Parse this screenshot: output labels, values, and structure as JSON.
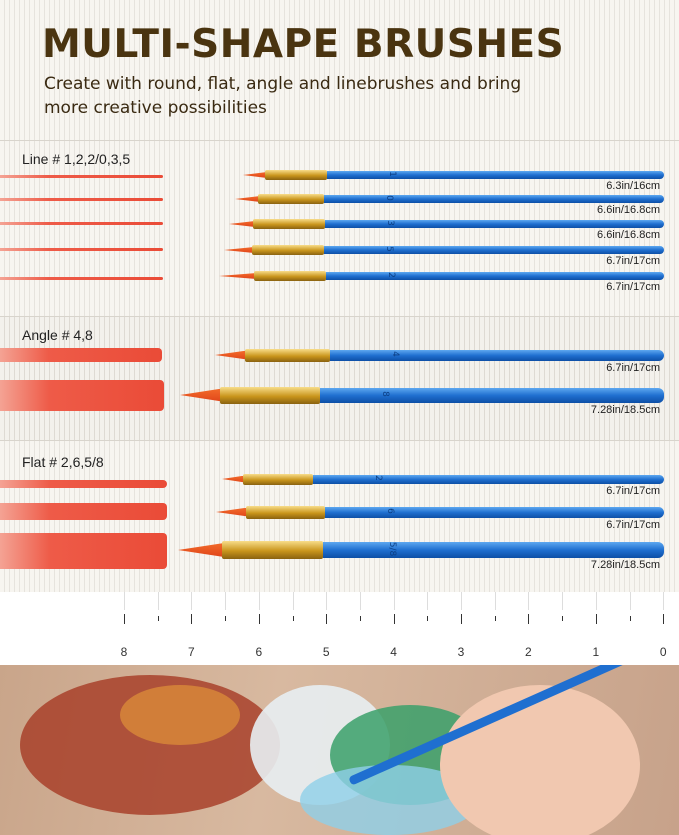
{
  "header": {
    "title": "MULTI-SHAPE BRUSHES",
    "subtitle": "Create with round, flat, angle and linebrushes and bring more creative possibilities"
  },
  "sections": [
    {
      "label": "Line # 1,2,2/0,3,5",
      "brushes": [
        {
          "number": "1",
          "length": "6.3in/16cm"
        },
        {
          "number": "0",
          "length": "6.6in/16.8cm"
        },
        {
          "number": "3",
          "length": "6.6in/16.8cm"
        },
        {
          "number": "5",
          "length": "6.7in/17cm"
        },
        {
          "number": "2",
          "length": "6.7in/17cm"
        }
      ]
    },
    {
      "label": "Angle # 4,8",
      "brushes": [
        {
          "number": "4",
          "length": "6.7in/17cm"
        },
        {
          "number": "8",
          "length": "7.28in/18.5cm"
        }
      ]
    },
    {
      "label": "Flat # 2,6,5/8",
      "brushes": [
        {
          "number": "2",
          "length": "6.7in/17cm"
        },
        {
          "number": "6",
          "length": "6.7in/17cm"
        },
        {
          "number": "5/8",
          "length": "7.28in/18.5cm"
        }
      ]
    }
  ],
  "ruler": {
    "labels": [
      "8",
      "7",
      "6",
      "5",
      "4",
      "3",
      "2",
      "1",
      "0"
    ],
    "unit": "in"
  },
  "colors": {
    "title": "#4a3410",
    "handle": "#1f6fd0",
    "paint": "#ea4b37",
    "ferrule": "#c9951c"
  }
}
